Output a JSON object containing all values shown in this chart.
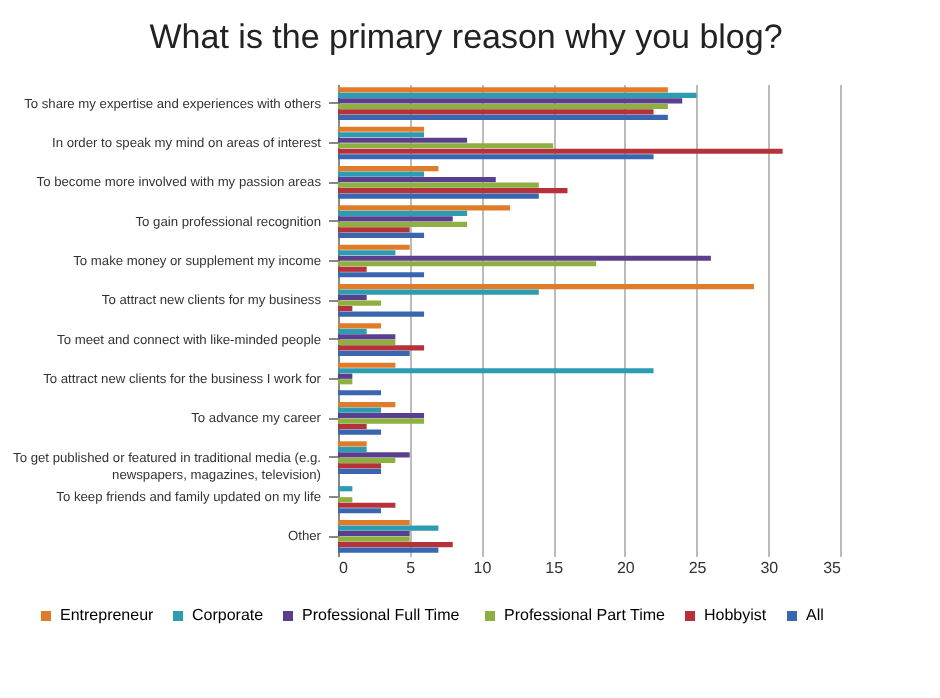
{
  "chart_data": {
    "type": "bar",
    "orientation": "horizontal",
    "title": "What is the primary reason why you blog?",
    "categories": [
      "To share my expertise and experiences with others",
      "In order to speak my mind on areas of interest",
      "To become more involved with my passion areas",
      "To gain professional recognition",
      "To make money or supplement my income",
      "To attract new clients for my business",
      "To meet and connect with like-minded people",
      "To attract new clients for the business I work for",
      "To advance my career",
      "To get published or featured in traditional media (e.g. newspapers, magazines, television)",
      "To keep friends and family updated on my life",
      "Other"
    ],
    "series": [
      {
        "name": "Entrepreneur",
        "color": "#e07b2a",
        "values": [
          23,
          6,
          7,
          12,
          5,
          29,
          3,
          4,
          4,
          2,
          0,
          5
        ]
      },
      {
        "name": "Corporate",
        "color": "#2e9bb0",
        "values": [
          25,
          6,
          6,
          9,
          4,
          14,
          2,
          22,
          3,
          2,
          1,
          7
        ]
      },
      {
        "name": "Professional  Full Time",
        "color": "#5b3f8f",
        "values": [
          24,
          9,
          11,
          8,
          26,
          2,
          4,
          1,
          6,
          5,
          0,
          5
        ]
      },
      {
        "name": "Professional Part Time",
        "color": "#8db040",
        "values": [
          23,
          15,
          14,
          9,
          18,
          3,
          4,
          1,
          6,
          4,
          1,
          5
        ]
      },
      {
        "name": "Hobbyist",
        "color": "#b5323a",
        "values": [
          22,
          31,
          16,
          5,
          2,
          1,
          6,
          0,
          2,
          3,
          4,
          8
        ]
      },
      {
        "name": "All",
        "color": "#3a66b0",
        "values": [
          23,
          22,
          14,
          6,
          6,
          6,
          5,
          3,
          3,
          3,
          3,
          7
        ]
      }
    ],
    "xlim": [
      0,
      35
    ],
    "xticks": [
      0,
      5,
      10,
      15,
      20,
      25,
      30,
      35
    ],
    "grid": "x",
    "legend": "bottom"
  }
}
